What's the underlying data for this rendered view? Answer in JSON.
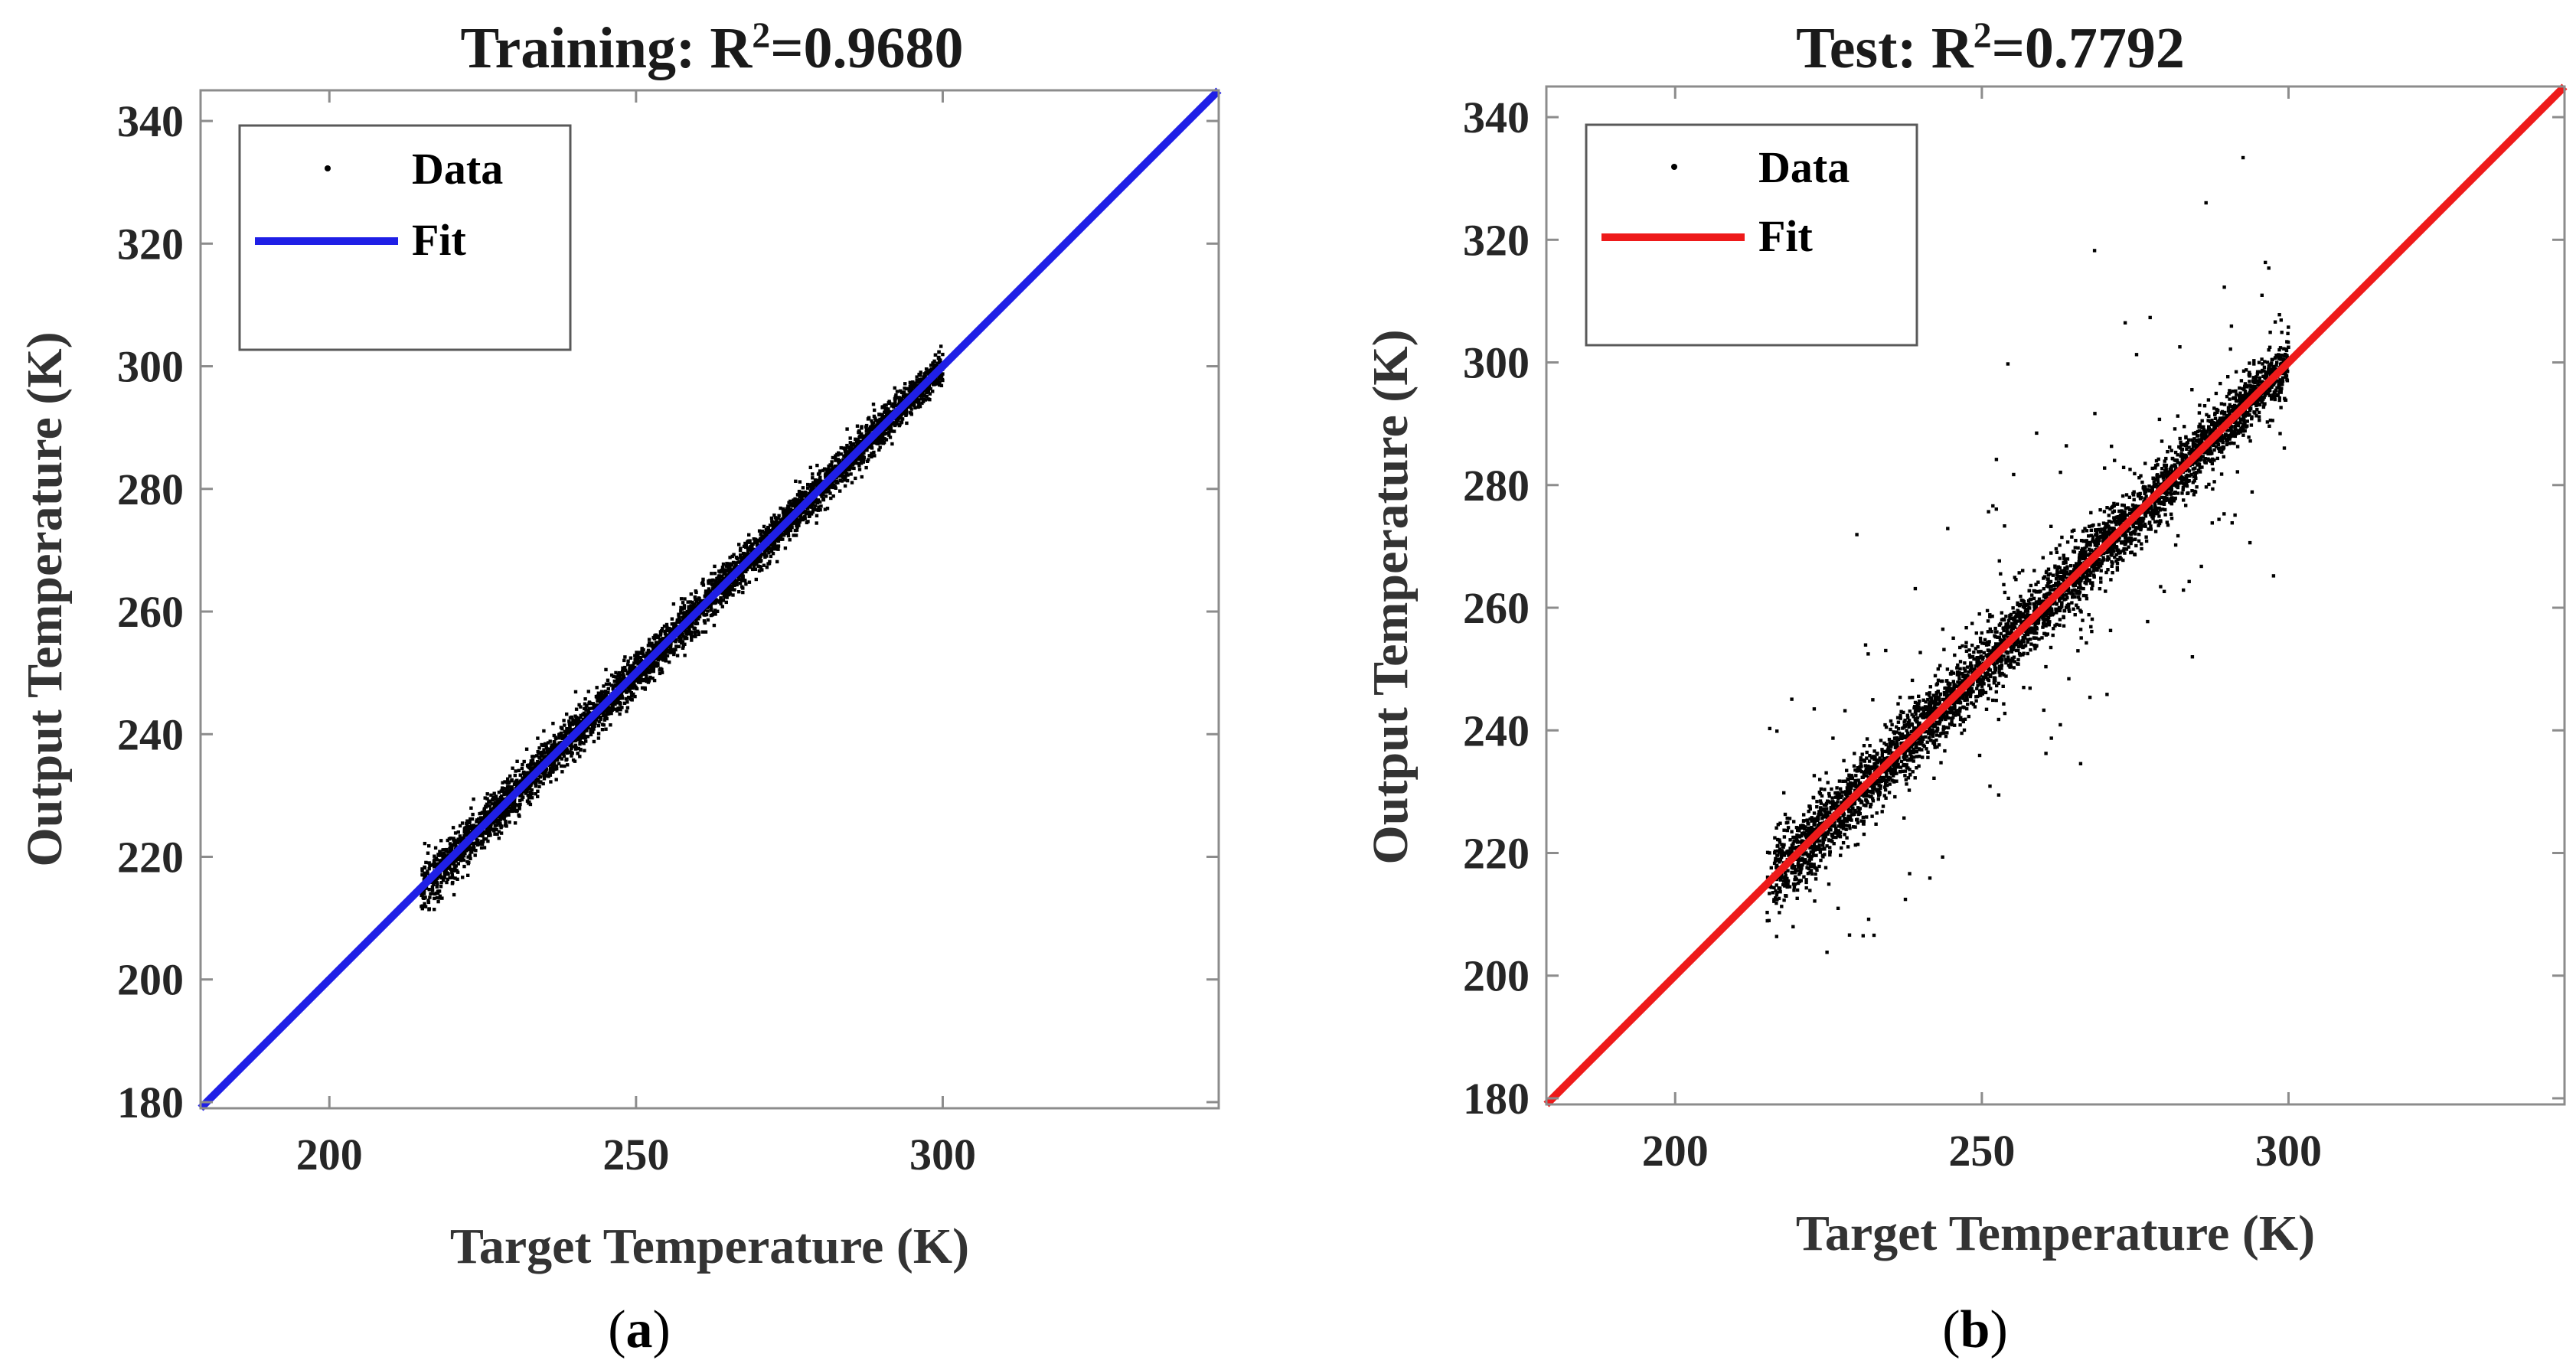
{
  "figure": {
    "panel_labels": [
      "a",
      "b"
    ]
  },
  "chart_data": [
    {
      "type": "scatter",
      "title_prefix": "Training: R",
      "title_superscript": "2",
      "title_suffix": "=0.9680",
      "xlabel": "Target Temperature (K)",
      "ylabel": "Output Temperature (K)",
      "xlim": [
        179,
        345
      ],
      "ylim": [
        179,
        345
      ],
      "xticks": [
        200,
        250,
        300
      ],
      "yticks": [
        180,
        200,
        220,
        240,
        260,
        280,
        300,
        320,
        340
      ],
      "fit_color": "#1f1fe6",
      "series": [
        {
          "name": "Data",
          "kind": "points",
          "x_range": [
            215,
            300
          ],
          "noise_sd": 1.7,
          "outlier_fraction": 0.0,
          "count": 4500,
          "seed": 11
        },
        {
          "name": "Fit",
          "kind": "line",
          "x": [
            179,
            345
          ],
          "y": [
            179,
            345
          ]
        }
      ],
      "legend": {
        "entries": [
          "Data",
          "Fit"
        ],
        "location": "top-left"
      }
    },
    {
      "type": "scatter",
      "title_prefix": "Test: R",
      "title_superscript": "2",
      "title_suffix": "=0.7792",
      "xlabel": "Target Temperature (K)",
      "ylabel": "Output Temperature (K)",
      "xlim": [
        179,
        345
      ],
      "ylim": [
        179,
        345
      ],
      "xticks": [
        200,
        250,
        300
      ],
      "yticks": [
        180,
        200,
        220,
        240,
        260,
        280,
        300,
        320,
        340
      ],
      "fit_color": "#ee1a1a",
      "series": [
        {
          "name": "Data",
          "kind": "points",
          "x_range": [
            215,
            300
          ],
          "noise_sd": 2.6,
          "outlier_fraction": 0.05,
          "count": 4500,
          "seed": 23
        },
        {
          "name": "Fit",
          "kind": "line",
          "x": [
            179,
            345
          ],
          "y": [
            179,
            345
          ]
        }
      ],
      "legend": {
        "entries": [
          "Data",
          "Fit"
        ],
        "location": "top-left"
      }
    }
  ]
}
